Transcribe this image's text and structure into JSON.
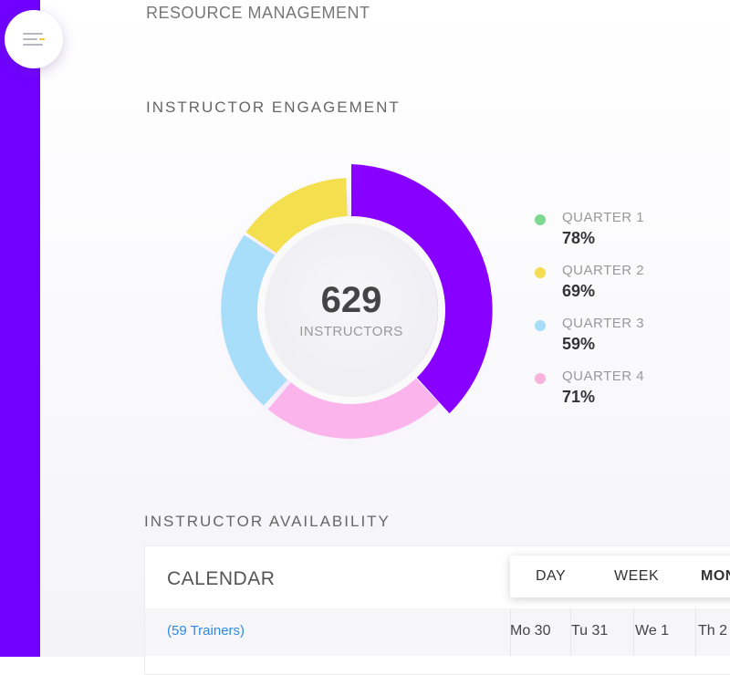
{
  "header": {
    "title": "RESOURCE MANAGEMENT"
  },
  "engagement": {
    "title": "INSTRUCTOR ENGAGEMENT",
    "center_value": "629",
    "center_label": "INSTRUCTORS",
    "legend": [
      {
        "name": "QUARTER 1",
        "value": "78%",
        "dot_color": "#7dd98f"
      },
      {
        "name": "QUARTER 2",
        "value": "69%",
        "dot_color": "#f4dc50"
      },
      {
        "name": "QUARTER 3",
        "value": "59%",
        "dot_color": "#a6ddf7"
      },
      {
        "name": "QUARTER 4",
        "value": "71%",
        "dot_color": "#f7b3dc"
      }
    ],
    "segment_colors": {
      "purple": "#8800ff",
      "pink": "#fbb4ec",
      "blue": "#a9defa",
      "yellow": "#f4e04f"
    }
  },
  "availability": {
    "title": "INSTRUCTOR AVAILABILITY",
    "calendar": {
      "title": "CALENDAR",
      "tabs": [
        "DAY",
        "WEEK",
        "MON"
      ],
      "trainers": "(59 Trainers)",
      "days": [
        "Mo 30",
        "Tu 31",
        "We 1",
        "Th 2"
      ]
    }
  },
  "colors": {
    "sidebar": "#7000ff",
    "link": "#2f8ae5"
  }
}
